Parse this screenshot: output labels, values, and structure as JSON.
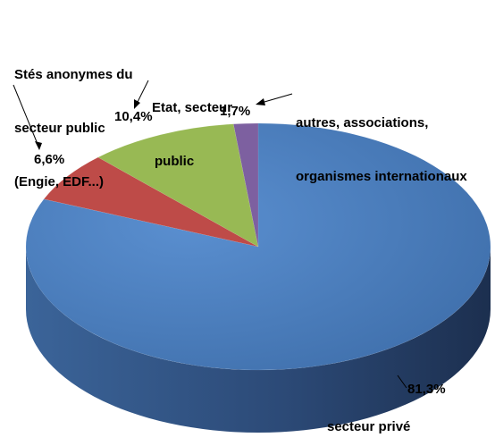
{
  "chart_data": {
    "type": "pie",
    "variant": "3d",
    "slices": [
      {
        "name": "secteur privé",
        "value": 81.3,
        "label": "81,3%",
        "color": "#4a7ebb"
      },
      {
        "name": "Stés anonymes du secteur public (Engie, EDF...)",
        "value": 6.6,
        "label": "6,6%",
        "color": "#be4b48"
      },
      {
        "name": "Etat, secteur public",
        "value": 10.4,
        "label": "10,4%",
        "color": "#98b954"
      },
      {
        "name": "autres, associations, organismes internationaux",
        "value": 1.7,
        "label": "1,7%",
        "color": "#7d60a0"
      }
    ],
    "category_labels": {
      "prive": "secteur privé",
      "stes_line1": "Stés anonymes du",
      "stes_line2": "secteur public",
      "stes_line3": "(Engie, EDF...)",
      "etat_line1": "Etat, secteur",
      "etat_line2": "public",
      "autres_line1": "autres, associations,",
      "autres_line2": "organismes internationaux"
    }
  }
}
